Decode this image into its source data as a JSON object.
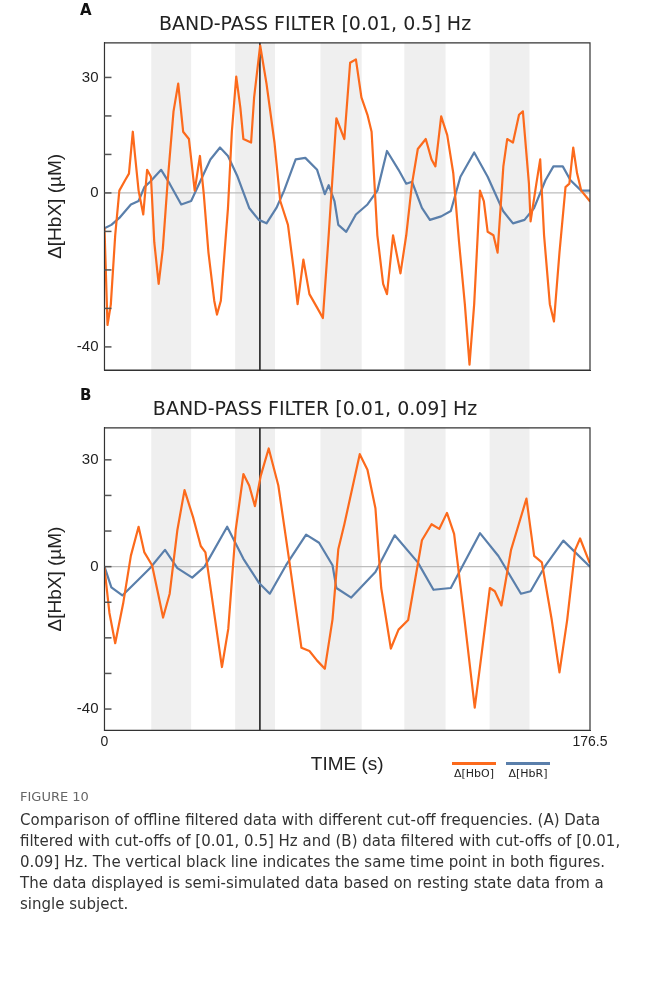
{
  "chart_data": [
    {
      "type": "line",
      "title": "BAND-PASS FILTER [0.01, 0.5] Hz",
      "ylabel": "Δ[HbX] (µM)",
      "annotations": [
        "A"
      ],
      "xlim": [
        0,
        176.5
      ],
      "ylim": [
        -46,
        39
      ],
      "yticks": [
        {
          "value": -40,
          "label": "-40"
        },
        {
          "value": -30,
          "label": null
        },
        {
          "value": -20,
          "label": null
        },
        {
          "value": -10,
          "label": null
        },
        {
          "value": 0,
          "label": "0"
        },
        {
          "value": 10,
          "label": null
        },
        {
          "value": 20,
          "label": null
        },
        30
      ],
      "tick_labels": "y",
      "marker": "none",
      "line_style": "solid",
      "legend": false,
      "bands": [
        {
          "axis": "x",
          "from": 17,
          "to": 31.5,
          "color": "#efefef"
        },
        {
          "axis": "x",
          "from": 47.5,
          "to": 62,
          "color": "#efefef"
        },
        {
          "axis": "x",
          "from": 78.5,
          "to": 93.5,
          "color": "#efefef"
        },
        {
          "axis": "x",
          "from": 109,
          "to": 124,
          "color": "#efefef"
        },
        {
          "axis": "x",
          "from": 140,
          "to": 154.5,
          "color": "#efefef"
        }
      ],
      "ref_lines": [
        {
          "axis": "y",
          "value": 0,
          "color": "#bdbdbd"
        },
        {
          "axis": "x",
          "value": 56.5,
          "color": "#222222"
        }
      ],
      "series": [
        {
          "color": "#fc6a1c",
          "x": [
            0,
            1.1,
            2.3,
            3.9,
            5.4,
            7.5,
            8.9,
            10.3,
            11,
            12.4,
            14.1,
            15.5,
            16.9,
            18.1,
            19.7,
            21.2,
            23,
            25.1,
            26.8,
            28.6,
            30.7,
            32.8,
            34.7,
            36.1,
            37.8,
            39.9,
            40.9,
            42.3,
            44.9,
            46.3,
            47.9,
            49.4,
            50.5,
            53.3,
            54.4,
            56.6,
            58.9,
            61.8,
            63.9,
            66.7,
            68.8,
            70.2,
            72.3,
            74.5,
            77.3,
            79.4,
            81.5,
            84.3,
            87.2,
            89.3,
            91.4,
            93.4,
            95.6,
            97.1,
            99.2,
            101.3,
            102.7,
            104.9,
            107.6,
            109.7,
            111.8,
            113.9,
            116.8,
            118.9,
            120.3,
            122.4,
            124.6,
            126.8,
            128.9,
            131,
            132.7,
            134.4,
            136.5,
            137.9,
            139.3,
            141.4,
            142.9,
            145,
            146.4,
            148.5,
            150.7,
            152.1,
            154.3,
            154.9,
            157,
            158.4,
            159.8,
            161.9,
            163.4,
            165.4,
            167.6,
            169,
            170.4,
            171.8,
            173.3,
            176.4
          ],
          "values": [
            -9.2,
            -34.3,
            -29,
            -11,
            0.6,
            3.3,
            5,
            15.9,
            10.5,
            0.6,
            -5.6,
            6,
            4.2,
            -12.8,
            -23.6,
            -14.6,
            3.3,
            21.2,
            28.4,
            15.9,
            14,
            0.6,
            9.6,
            -0.3,
            -15.5,
            -28,
            -31.6,
            -28,
            -3.9,
            15.9,
            30.2,
            22.1,
            14,
            13.1,
            24.8,
            38.3,
            28.4,
            13.1,
            -2.1,
            -8.3,
            -20,
            -28.9,
            -17.3,
            -26.3,
            -29.8,
            -32.5,
            -11,
            19.4,
            14,
            33.8,
            34.7,
            24.8,
            20.3,
            15.9,
            -11,
            -23.6,
            -26.3,
            -11,
            -20.9,
            -11,
            2.4,
            11.4,
            14,
            8.7,
            6.9,
            19.9,
            15,
            5.1,
            -12.8,
            -28.9,
            -44.6,
            -28.9,
            0.6,
            -2.1,
            -10.1,
            -11,
            -15.5,
            6.9,
            14,
            13.1,
            20.3,
            21.2,
            2.4,
            -7.4,
            2.4,
            8.7,
            -11,
            -28.9,
            -33.4,
            -15.5,
            1.5,
            2.4,
            11.8,
            5.1,
            0.6,
            -2.1
          ]
        },
        {
          "color": "#5a7fab",
          "x": [
            0,
            2.5,
            5.4,
            9.6,
            12.4,
            14.5,
            16.6,
            20.6,
            23.7,
            27.9,
            31.5,
            35,
            38.5,
            42,
            44.9,
            48.4,
            52.6,
            56.1,
            58.9,
            62.5,
            65.3,
            69.5,
            73,
            77.3,
            80.1,
            81.5,
            83.6,
            85,
            87.9,
            91.4,
            95.6,
            99.2,
            102.7,
            106.9,
            109.7,
            111.8,
            115.4,
            118.3,
            122.4,
            125.9,
            129.4,
            134.4,
            139.3,
            144.9,
            148.5,
            152.7,
            156.2,
            160.3,
            163.2,
            166.6,
            169.4,
            173.3,
            176.4
          ],
          "values": [
            -9.2,
            -8.3,
            -6.5,
            -3,
            -2.1,
            1.5,
            2.9,
            6,
            2.4,
            -3,
            -2.1,
            3.3,
            8.7,
            11.8,
            9.6,
            4.2,
            -3.9,
            -7,
            -7.9,
            -3.9,
            0.6,
            8.7,
            9.1,
            6,
            -0.3,
            2,
            -2.1,
            -8.3,
            -10.1,
            -5.6,
            -3,
            0.6,
            10.9,
            6,
            2.4,
            2.9,
            -3.9,
            -7,
            -6.1,
            -4.7,
            4.2,
            10.5,
            4.2,
            -4.7,
            -7.9,
            -7,
            -3.9,
            3.3,
            6.9,
            6.9,
            3.3,
            0.6,
            0.6
          ]
        }
      ]
    },
    {
      "type": "line",
      "title": "BAND-PASS FILTER [0.01, 0.09] Hz",
      "xlabel": "TIME (s)",
      "ylabel": "Δ[HbX] (µM)",
      "annotations": [
        "B",
        "FIGURE 10",
        "Comparison of offline filtered data with different cut-off frequencies. (A) Data filtered with cut-offs of [0.01, 0.5] Hz and (B) data filtered with cut-offs of [0.01, 0.09] Hz. The vertical black line indicates the same time point in both figures. The data displayed is semi-simulated data based on resting state data from a single subject."
      ],
      "xlim": [
        0,
        176.5
      ],
      "xticks": [
        0,
        176.5
      ],
      "ylim": [
        -46,
        39
      ],
      "yticks": [
        {
          "value": -40,
          "label": "-40"
        },
        {
          "value": -30,
          "label": null
        },
        {
          "value": -20,
          "label": null
        },
        {
          "value": -10,
          "label": null
        },
        {
          "value": 0,
          "label": "0"
        },
        {
          "value": 10,
          "label": null
        },
        {
          "value": 20,
          "label": null
        },
        30
      ],
      "marker": "none",
      "line_style": "solid",
      "legend": "bottom right",
      "bands": [
        {
          "axis": "x",
          "from": 17,
          "to": 31.5,
          "color": "#efefef"
        },
        {
          "axis": "x",
          "from": 47.5,
          "to": 62,
          "color": "#efefef"
        },
        {
          "axis": "x",
          "from": 78.5,
          "to": 93.5,
          "color": "#efefef"
        },
        {
          "axis": "x",
          "from": 109,
          "to": 124,
          "color": "#efefef"
        },
        {
          "axis": "x",
          "from": 140,
          "to": 154.5,
          "color": "#efefef"
        }
      ],
      "ref_lines": [
        {
          "axis": "y",
          "value": 0,
          "color": "#bdbdbd"
        },
        {
          "axis": "x",
          "value": 56.5,
          "color": "#222222"
        }
      ],
      "series": [
        {
          "name": "Δ[HbO]",
          "color": "#fc6a1c",
          "x": [
            0,
            1.8,
            3.9,
            6.8,
            9.6,
            12.4,
            14.5,
            17.3,
            19.5,
            21.3,
            23.7,
            26.5,
            29.1,
            32.2,
            35,
            36.7,
            39.2,
            42.7,
            45,
            47.7,
            50.5,
            52.6,
            54.7,
            56.8,
            59.7,
            63.2,
            67.4,
            71.6,
            74.5,
            77.3,
            80.1,
            82.9,
            85,
            87.2,
            92.8,
            95.6,
            98.5,
            100.6,
            104.1,
            106.9,
            110.4,
            115.4,
            118.9,
            121.7,
            124.5,
            127.1,
            130.9,
            134.6,
            137.2,
            140.1,
            141.9,
            144.3,
            147.8,
            150.6,
            153.4,
            156.2,
            159,
            162.6,
            165.4,
            168.2,
            171.1,
            172.9,
            176.3
          ],
          "values": [
            -0.4,
            -13,
            -21.5,
            -10.3,
            3.1,
            11.2,
            4,
            0.4,
            -7.6,
            -14.3,
            -7.6,
            10.3,
            21.5,
            13.9,
            5.8,
            4,
            -9.4,
            -28.2,
            -17.5,
            10.3,
            26,
            22.8,
            17,
            25.5,
            33.2,
            22.8,
            0.4,
            -22.8,
            -23.7,
            -26.4,
            -28.7,
            -14.8,
            4.9,
            11.9,
            31.6,
            27.2,
            16.4,
            -6,
            -23,
            -17.7,
            -15,
            7.4,
            11.9,
            10.6,
            15.1,
            9.2,
            -15,
            -39.6,
            -23.9,
            -6,
            -6.9,
            -10.9,
            4.7,
            11.9,
            19.1,
            3,
            1.2,
            -15,
            -29.7,
            -15,
            4.7,
            7.9,
            1.2
          ]
        },
        {
          "name": "Δ[HbR]",
          "color": "#5a7fab",
          "x": [
            0,
            2.5,
            6.5,
            12.4,
            16.6,
            22,
            26.5,
            31.9,
            36.4,
            44.6,
            50.5,
            56.1,
            60.1,
            66,
            73.3,
            78,
            82.9,
            84.3,
            89.7,
            98.5,
            105.5,
            113.9,
            119.6,
            125.9,
            136.5,
            143.2,
            151.4,
            154.9,
            160.3,
            166.8,
            176.3
          ],
          "values": [
            0,
            -5.8,
            -8.1,
            -3.6,
            -0.4,
            4.7,
            -0.4,
            -3.1,
            0,
            11.2,
            2.2,
            -4.5,
            -7.6,
            0.4,
            9,
            6.7,
            0.4,
            -6,
            -8.7,
            -1.5,
            8.8,
            1.2,
            -6.5,
            -6,
            9.4,
            3,
            -7.6,
            -6.9,
            0.3,
            7.3,
            0.1
          ]
        }
      ]
    }
  ]
}
